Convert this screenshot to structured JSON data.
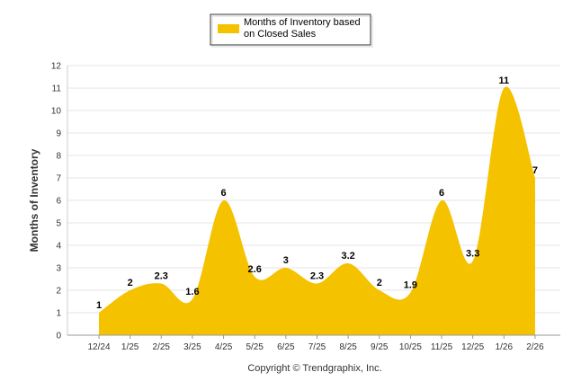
{
  "chart_data": {
    "type": "area",
    "ylabel": "Months of Inventory",
    "xlabel": "",
    "ylim": [
      0,
      12
    ],
    "yticks": [
      0,
      1,
      2,
      3,
      4,
      5,
      6,
      7,
      8,
      9,
      10,
      11,
      12
    ],
    "grid": true,
    "legend_position": "top-center",
    "categories": [
      "12/24",
      "1/25",
      "2/25",
      "3/25",
      "4/25",
      "5/25",
      "6/25",
      "7/25",
      "8/25",
      "9/25",
      "10/25",
      "11/25",
      "12/25",
      "1/26",
      "2/26"
    ],
    "series": [
      {
        "name": "Months of Inventory based on Closed Sales",
        "legend_lines": [
          "Months of Inventory based",
          "on Closed Sales"
        ],
        "color": "#F5C200",
        "values": [
          1,
          2,
          2.3,
          1.6,
          6,
          2.6,
          3,
          2.3,
          3.2,
          2,
          1.9,
          6,
          3.3,
          11,
          7
        ],
        "labels": [
          "1",
          "2",
          "2.3",
          "1.6",
          "6",
          "2.6",
          "3",
          "2.3",
          "3.2",
          "2",
          "1.9",
          "6",
          "3.3",
          "11",
          "7"
        ]
      }
    ]
  },
  "footer": {
    "copyright": "Copyright © Trendgraphix, Inc."
  }
}
